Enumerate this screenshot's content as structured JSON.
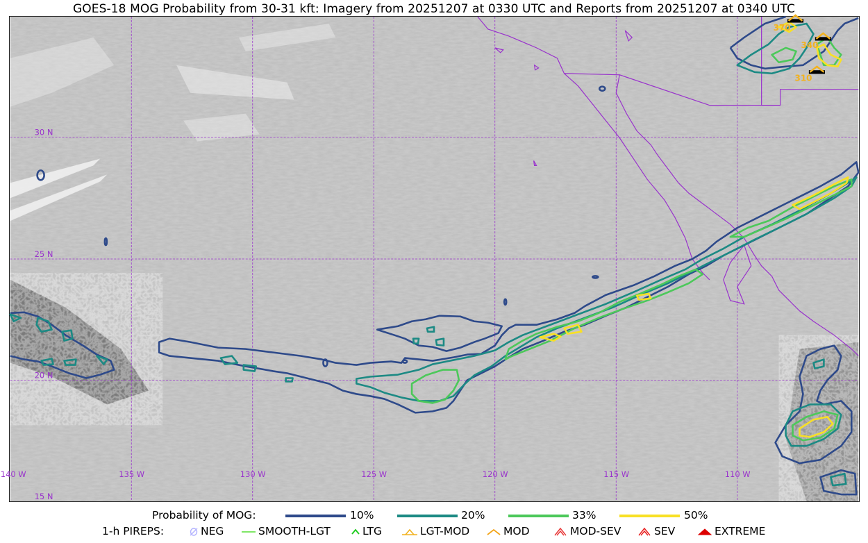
{
  "title": "GOES-18 MOG Probability from 30-31 kft: Imagery from 20251207 at 0330 UTC and Reports from 20251207 at 0340 UTC",
  "map": {
    "lon_labels": [
      "140 W",
      "135 W",
      "130 W",
      "125 W",
      "120 W",
      "115 W",
      "110 W"
    ],
    "lat_labels": [
      "30 N",
      "25 N",
      "20 N",
      "15 N"
    ],
    "report_labels": [
      "370",
      "340",
      "310"
    ],
    "colors": {
      "gridline": "#9933cc",
      "coastline": "#9933cc",
      "background": "#bdbdbd"
    }
  },
  "legend": {
    "probability": {
      "label": "Probability of MOG:",
      "levels": [
        {
          "label": "10%",
          "color": "#2e4a8a"
        },
        {
          "label": "20%",
          "color": "#1c8a84"
        },
        {
          "label": "33%",
          "color": "#4cc85a"
        },
        {
          "label": "50%",
          "color": "#f8e025"
        }
      ]
    },
    "pireps": {
      "label": "1-h PIREPS:",
      "items": [
        {
          "label": "NEG",
          "icon": "neg-icon",
          "color": "#b4b4ff"
        },
        {
          "label": "SMOOTH-LGT",
          "icon": "smooth-lgt-icon",
          "color": "#55dd33"
        },
        {
          "label": "LTG",
          "icon": "ltg-icon",
          "color": "#22cc22"
        },
        {
          "label": "LGT-MOD",
          "icon": "lgt-mod-icon",
          "color": "#f2b21f"
        },
        {
          "label": "MOD",
          "icon": "mod-icon",
          "color": "#f2a51a"
        },
        {
          "label": "MOD-SEV",
          "icon": "mod-sev-icon",
          "color": "#e83a3a"
        },
        {
          "label": "SEV",
          "icon": "sev-icon",
          "color": "#e82020"
        },
        {
          "label": "EXTREME",
          "icon": "extreme-icon",
          "color": "#dd0000"
        }
      ]
    }
  }
}
